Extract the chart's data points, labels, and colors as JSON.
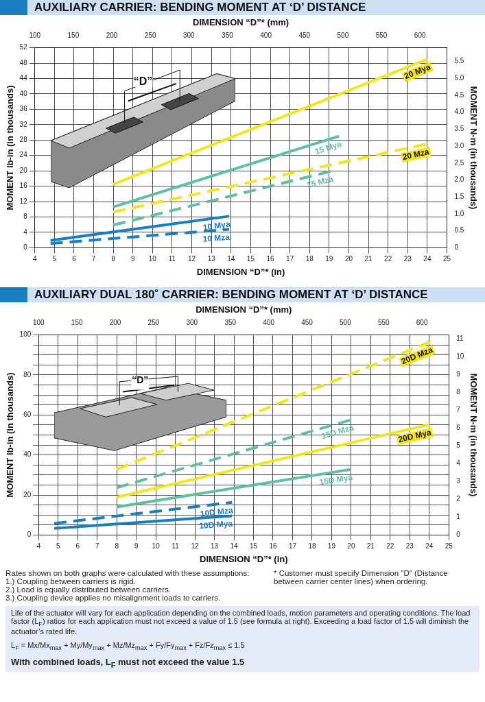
{
  "chart_data": [
    {
      "type": "line",
      "title": "AUXILIARY CARRIER: BENDING MOMENT AT ‘D’ DISTANCE",
      "xlabel": "DIMENSION “D”* (in)",
      "x2label": "DIMENSION “D”* (mm)",
      "ylabel": "MOMENT lb-in (in thousands)",
      "y2label": "MOMENT N-m (in thousands)",
      "xlim": [
        4,
        25
      ],
      "xticks": [
        4,
        5,
        6,
        7,
        8,
        9,
        10,
        11,
        12,
        13,
        14,
        15,
        16,
        17,
        18,
        19,
        20,
        21,
        22,
        23,
        24,
        25
      ],
      "x2lim": [
        100,
        635
      ],
      "x2ticks": [
        100,
        150,
        200,
        250,
        300,
        350,
        400,
        450,
        500,
        550,
        600
      ],
      "ylim": [
        0,
        52
      ],
      "yticks": [
        0,
        4,
        8,
        12,
        16,
        20,
        24,
        28,
        32,
        36,
        40,
        44,
        48,
        52
      ],
      "y2lim": [
        0,
        5.9
      ],
      "y2ticks": [
        0,
        {
          "value": 0.5,
          "label": "0.5"
        },
        {
          "value": 1,
          "label": "1.0"
        },
        {
          "value": 1.5,
          "label": "1.5"
        },
        {
          "value": 2,
          "label": "2.0"
        },
        {
          "value": 2.5,
          "label": "2.5"
        },
        {
          "value": 3,
          "label": "3.0"
        },
        {
          "value": 3.5,
          "label": "3.5"
        },
        {
          "value": 4,
          "label": "4.0"
        },
        {
          "value": 4.5,
          "label": "4.5"
        },
        {
          "value": 5,
          "label": "5.0"
        },
        {
          "value": 5.5,
          "label": "5.5"
        }
      ],
      "grid": true,
      "annotations": [
        "“D”"
      ],
      "series": [
        {
          "name": "20 Mya",
          "color": "#f2e51b",
          "x": [
            8,
            24
          ],
          "values": [
            16.5,
            49
          ]
        },
        {
          "name": "15 Mya",
          "color": "#5fbf9f",
          "x": [
            8,
            19.5
          ],
          "values": [
            10.6,
            29
          ]
        },
        {
          "name": "20 Mza",
          "color": "#f2e51b",
          "line_style": "dashed",
          "x": [
            8,
            24
          ],
          "values": [
            9.3,
            27
          ]
        },
        {
          "name": "15 Mza",
          "color": "#5fbf9f",
          "line_style": "dashed",
          "x": [
            8,
            19.1
          ],
          "values": [
            5.9,
            19.9
          ]
        },
        {
          "name": "10 Mya",
          "color": "#1a7fc1",
          "x": [
            4.8,
            13.9
          ],
          "values": [
            1.9,
            8.2
          ]
        },
        {
          "name": "10 Mza",
          "color": "#1a7fc1",
          "line_style": "dashed",
          "x": [
            4.8,
            13.9
          ],
          "values": [
            1.1,
            4.8
          ]
        }
      ]
    },
    {
      "type": "line",
      "title": "AUXILIARY DUAL 180˚ CARRIER: BENDING MOMENT AT ‘D’ DISTANCE",
      "xlabel": "DIMENSION “D”* (in)",
      "x2label": "DIMENSION “D”* (mm)",
      "ylabel": "MOMENT lb-in (in thousands)",
      "y2label": "MOMENT N-m (in thousands)",
      "xlim": [
        4,
        25
      ],
      "xticks": [
        4,
        5,
        6,
        7,
        8,
        9,
        10,
        11,
        12,
        13,
        14,
        15,
        16,
        17,
        18,
        19,
        20,
        21,
        22,
        23,
        24,
        25
      ],
      "x2lim": [
        100,
        635
      ],
      "x2ticks": [
        100,
        150,
        200,
        250,
        300,
        350,
        400,
        450,
        500,
        550,
        600
      ],
      "ylim": [
        0,
        100
      ],
      "yticks": [
        0,
        {
          "value": 5,
          "label": null
        },
        {
          "value": 10,
          "label": null
        },
        {
          "value": 15,
          "label": null
        },
        20,
        {
          "value": 25,
          "label": null
        },
        {
          "value": 30,
          "label": null
        },
        {
          "value": 35,
          "label": null
        },
        40,
        {
          "value": 45,
          "label": null
        },
        {
          "value": 50,
          "label": null
        },
        {
          "value": 55,
          "label": null
        },
        60,
        {
          "value": 65,
          "label": null
        },
        {
          "value": 70,
          "label": null
        },
        {
          "value": 75,
          "label": null
        },
        80,
        {
          "value": 85,
          "label": null
        },
        {
          "value": 90,
          "label": null
        },
        {
          "value": 95,
          "label": null
        },
        100
      ],
      "y2lim": [
        0,
        11.2
      ],
      "y2ticks": [
        0,
        1,
        2,
        3,
        4,
        5,
        6,
        7,
        8,
        9,
        10,
        11
      ],
      "grid": true,
      "annotations": [
        "“D”"
      ],
      "series": [
        {
          "name": "20D Mza",
          "color": "#f2e51b",
          "line_style": "dashed",
          "x": [
            8,
            24
          ],
          "values": [
            32.8,
            96.4
          ]
        },
        {
          "name": "15D Mza",
          "color": "#5fbf9f",
          "line_style": "dashed",
          "x": [
            8,
            20
          ],
          "values": [
            23.7,
            57.6
          ]
        },
        {
          "name": "20D Mya",
          "color": "#f2e51b",
          "x": [
            8,
            24
          ],
          "values": [
            18.9,
            55.2
          ]
        },
        {
          "name": "15D Mya",
          "color": "#5fbf9f",
          "x": [
            8,
            20
          ],
          "values": [
            14,
            32.8
          ]
        },
        {
          "name": "10D Mza",
          "color": "#1a7fc1",
          "line_style": "dashed",
          "x": [
            4.8,
            13.9
          ],
          "values": [
            5.8,
            16.3
          ]
        },
        {
          "name": "10D Mya",
          "color": "#1a7fc1",
          "x": [
            4.8,
            13.9
          ],
          "values": [
            3.3,
            9.6
          ]
        }
      ]
    },
    {
      "type": "other",
      "annotations": [
        "Rates shown on both graphs were calculated with these assumptions:",
        "1.) Coupling between carriers is rigid.",
        "2.) Load is equally distributed between carriers.",
        "3.) Coupling device applies no misalignment loads to carriers.",
        "* Customer must specify Dimension \"D\" (Distance between carrier center lines) when ordering.",
        "Life of the actuator will vary for each application depending on the combined loads, motion parameters and operating conditions. The load factor (L$_{F}$) ratios for each application must not exceed a value of 1.5 (see formula at right).  Exceeding a load factor of 1.5 will diminish the actuator’s rated life.",
        "L$_{F}$ = Mx/Mx$_{max}$ + My/My$_{max}$ + Mz/Mz$_{max}$ + Fy/Fy$_{max}$ + Fz/Fz$_{max}$ ≤ 1.5",
        "With combined loads, L$_{F}$ must not exceed the value 1.5"
      ]
    }
  ]
}
